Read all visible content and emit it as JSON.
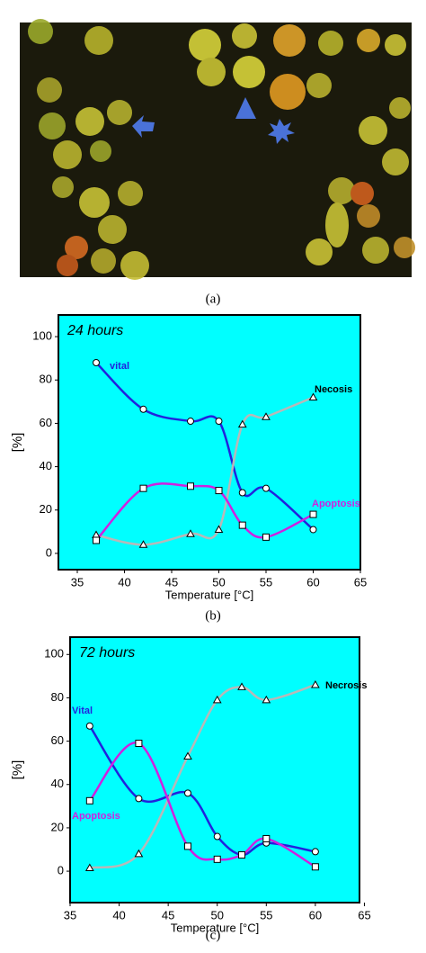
{
  "image_panel": {
    "caption": "(a)"
  },
  "chart_data": [
    {
      "type": "line",
      "title": "24 hours",
      "caption": "(b)",
      "x_label": "Temperature [°C]",
      "y_label": "[%]",
      "x": [
        37,
        42,
        47,
        50,
        52.5,
        55,
        60
      ],
      "series": [
        {
          "name": "vital",
          "color": "#2222dd",
          "marker": "circle",
          "values": [
            88,
            66.5,
            61,
            61,
            28,
            30,
            11
          ]
        },
        {
          "name": "Necosis",
          "color": "#b8b8b8",
          "marker": "triangle",
          "values": [
            8.5,
            4,
            9,
            11,
            59.5,
            63,
            72
          ]
        },
        {
          "name": "Apoptosis",
          "color": "#d020e0",
          "marker": "square",
          "values": [
            6,
            30,
            31,
            29,
            13,
            7.5,
            18
          ]
        }
      ],
      "xlim": [
        33,
        65
      ],
      "ylim": [
        -7.5,
        110
      ],
      "xticks": [
        35,
        40,
        45,
        50,
        55,
        60,
        65
      ],
      "yticks": [
        0,
        20,
        40,
        60,
        80,
        100
      ],
      "background": "#00ffff"
    },
    {
      "type": "line",
      "title": "72 hours",
      "caption": "(c)",
      "x_label": "Temperature [°C]",
      "y_label": "[%]",
      "x": [
        37,
        42,
        47,
        50,
        52.5,
        55,
        60
      ],
      "series": [
        {
          "name": "Vital",
          "color": "#2222dd",
          "marker": "circle",
          "values": [
            67,
            33.5,
            36,
            16,
            7.5,
            13,
            9
          ]
        },
        {
          "name": "Necrosis",
          "color": "#b8b8b8",
          "marker": "triangle",
          "values": [
            1.5,
            8,
            53,
            79,
            85,
            79,
            86
          ]
        },
        {
          "name": "Apoptosis",
          "color": "#d020e0",
          "marker": "square",
          "values": [
            32.5,
            59,
            11.5,
            5.5,
            7.5,
            15,
            2
          ]
        }
      ],
      "xlim": [
        35,
        64.5
      ],
      "ylim": [
        -14.5,
        108
      ],
      "xticks": [
        35,
        40,
        45,
        50,
        55,
        60,
        65
      ],
      "yticks": [
        0,
        20,
        40,
        60,
        80,
        100
      ],
      "background": "#00ffff"
    }
  ]
}
